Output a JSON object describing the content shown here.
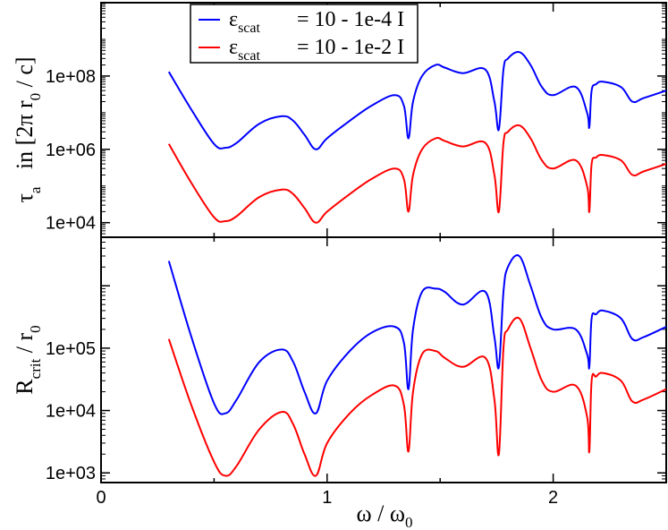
{
  "chart_data": [
    {
      "type": "line",
      "panel": "top",
      "ylabel": {
        "main": "τ",
        "sub": "a",
        "rest_a": "   in [2π r",
        "rest_sub": "0",
        "rest_b": " / c]"
      },
      "yscale": "log",
      "ylim": [
        4000,
        10000000000.0
      ],
      "xlim": [
        0,
        2.5
      ],
      "y_ticks": [
        {
          "value": 10000,
          "label": "1e+04"
        },
        {
          "value": 1000000,
          "label": "1e+06"
        },
        {
          "value": 100000000,
          "label": "1e+08"
        }
      ],
      "x": [
        0.3,
        0.4,
        0.5,
        0.55,
        0.6,
        0.7,
        0.8,
        0.85,
        0.9,
        0.95,
        1.0,
        1.1,
        1.2,
        1.3,
        1.34,
        1.36,
        1.38,
        1.42,
        1.48,
        1.52,
        1.6,
        1.7,
        1.74,
        1.76,
        1.78,
        1.8,
        1.85,
        1.9,
        1.95,
        2.0,
        2.1,
        2.15,
        2.16,
        2.17,
        2.19,
        2.22,
        2.3,
        2.35,
        2.4,
        2.5
      ],
      "series": [
        {
          "name": "eps_1e-4",
          "color": "#0000ff",
          "values": [
            130000000.0,
            12000000.0,
            1400000.0,
            1100000.0,
            1500000.0,
            5000000.0,
            8000000.0,
            6000000.0,
            2500000.0,
            1000000.0,
            2000000.0,
            6000000.0,
            16000000.0,
            30000000.0,
            15000000.0,
            2000000.0,
            20000000.0,
            100000000.0,
            200000000.0,
            170000000.0,
            120000000.0,
            150000000.0,
            20000000.0,
            3500000.0,
            150000000.0,
            300000000.0,
            450000000.0,
            200000000.0,
            50000000.0,
            30000000.0,
            50000000.0,
            10000000.0,
            4000000.0,
            40000000.0,
            60000000.0,
            70000000.0,
            50000000.0,
            20000000.0,
            25000000.0,
            40000000.0
          ]
        },
        {
          "name": "eps_1e-2",
          "color": "#ff0000",
          "values": [
            1400000.0,
            120000.0,
            14000.0,
            11000.0,
            15000.0,
            50000.0,
            80000.0,
            60000.0,
            25000.0,
            10000.0,
            20000.0,
            60000.0,
            160000.0,
            300000.0,
            150000.0,
            20000.0,
            200000.0,
            1000000.0,
            2000000.0,
            1700000.0,
            1200000.0,
            1500000.0,
            200000.0,
            20000.0,
            1500000.0,
            3000000.0,
            4500000.0,
            2000000.0,
            500000.0,
            300000.0,
            500000.0,
            100000.0,
            20000.0,
            400000.0,
            600000.0,
            700000.0,
            500000.0,
            200000.0,
            250000.0,
            400000.0
          ]
        }
      ]
    },
    {
      "type": "line",
      "panel": "bottom",
      "ylabel": {
        "main": "R",
        "sub": "crit",
        "rest_a": " / r",
        "rest_sub": "0"
      },
      "xlabel": {
        "main": "ω / ω",
        "sub": "0"
      },
      "yscale": "log",
      "ylim": [
        700,
        6000000.0
      ],
      "xlim": [
        0,
        2.5
      ],
      "y_ticks": [
        {
          "value": 1000,
          "label": "1e+03"
        },
        {
          "value": 10000,
          "label": "1e+04"
        },
        {
          "value": 100000,
          "label": "1e+05"
        }
      ],
      "x_ticks": [
        {
          "value": 0,
          "label": "0"
        },
        {
          "value": 1,
          "label": "1"
        },
        {
          "value": 2,
          "label": "2"
        }
      ],
      "x": [
        0.3,
        0.4,
        0.5,
        0.55,
        0.6,
        0.7,
        0.8,
        0.85,
        0.9,
        0.95,
        1.0,
        1.1,
        1.2,
        1.3,
        1.34,
        1.36,
        1.38,
        1.42,
        1.48,
        1.52,
        1.6,
        1.7,
        1.74,
        1.76,
        1.78,
        1.8,
        1.85,
        1.9,
        1.95,
        2.0,
        2.1,
        2.15,
        2.16,
        2.17,
        2.19,
        2.22,
        2.3,
        2.35,
        2.4,
        2.5
      ],
      "series": [
        {
          "name": "eps_1e-4",
          "color": "#0000ff",
          "values": [
            2500000.0,
            150000.0,
            13000.0,
            9000.0,
            15000.0,
            60000.0,
            95000.0,
            60000.0,
            20000.0,
            9000.0,
            30000.0,
            90000.0,
            180000.0,
            220000.0,
            120000.0,
            22000.0,
            200000.0,
            800000.0,
            900000.0,
            800000.0,
            500000.0,
            800000.0,
            150000.0,
            50000.0,
            800000.0,
            2000000.0,
            3000000.0,
            1000000.0,
            300000.0,
            200000.0,
            200000.0,
            80000.0,
            50000.0,
            300000.0,
            350000.0,
            400000.0,
            300000.0,
            140000.0,
            150000.0,
            220000.0
          ]
        },
        {
          "name": "eps_1e-2",
          "color": "#ff0000",
          "values": [
            140000.0,
            12000.0,
            1500.0,
            900.0,
            1300.0,
            5000.0,
            9500.0,
            6000.0,
            2000.0,
            900.0,
            3000.0,
            9000.0,
            18000.0,
            25000.0,
            12000.0,
            2200.0,
            20000.0,
            80000.0,
            90000.0,
            70000.0,
            50000.0,
            70000.0,
            15000.0,
            2000.0,
            100000.0,
            200000.0,
            300000.0,
            100000.0,
            30000.0,
            20000.0,
            25000.0,
            8000.0,
            2200.0,
            30000.0,
            35000.0,
            40000.0,
            30000.0,
            14000.0,
            15000.0,
            22000.0
          ]
        }
      ]
    }
  ],
  "legend": {
    "position": "top-left",
    "entries": [
      {
        "symbol": "ε",
        "sub": "scat",
        "value": "= 10 - 1e-4 I",
        "color": "#0000ff"
      },
      {
        "symbol": "ε",
        "sub": "scat",
        "value": "= 10 - 1e-2 I",
        "color": "#ff0000"
      }
    ]
  }
}
